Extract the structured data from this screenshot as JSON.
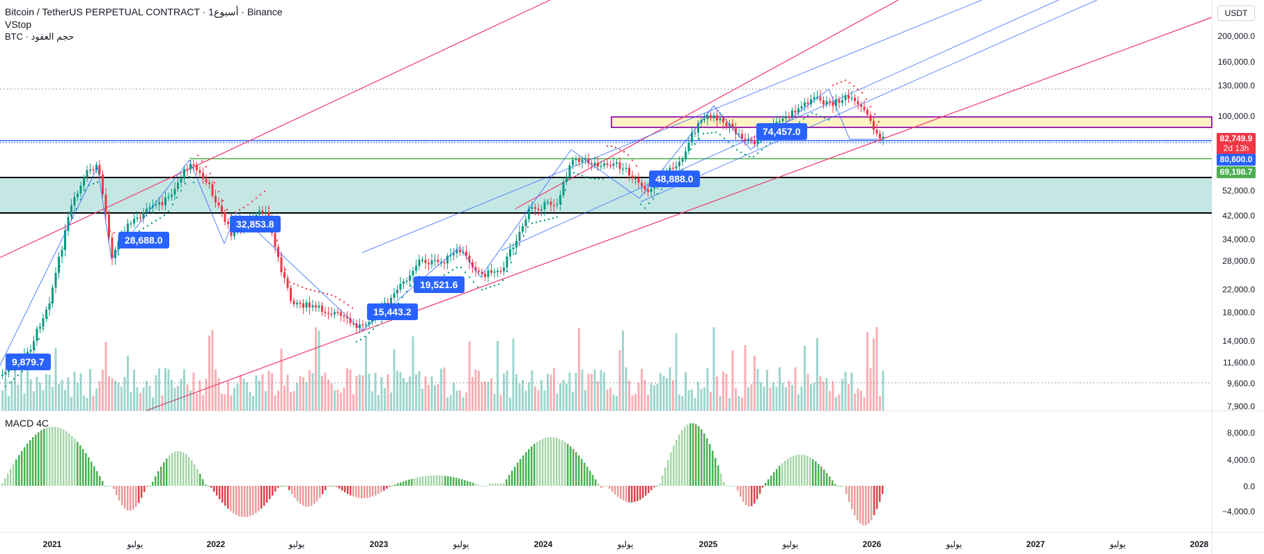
{
  "header": {
    "title": "Bitcoin / TetherUS PERPETUAL CONTRACT · 1أسبوع · Binance",
    "indicator": "VStop",
    "sub": "BTC · حجم العقود"
  },
  "currency_button": "USDT",
  "macd_label": "MACD 4C",
  "price_axis": [
    "200,000.0",
    "160,000.0",
    "130,000.0",
    "100,000.0",
    "52,000.0",
    "42,000.0",
    "34,000.0",
    "28,000.0",
    "22,000.0",
    "18,000.0",
    "14,000.0",
    "11,600.0",
    "9,600.0",
    "7,900.0"
  ],
  "macd_axis": [
    "8,000.0",
    "4,000.0",
    "0.0",
    "−4,000.0"
  ],
  "price_tags": {
    "last_price": "82,749.9",
    "countdown": "2d 13h",
    "blue_level": "80,600.0",
    "green_level": "69,198.7"
  },
  "time_axis": [
    {
      "label": "2021",
      "year": true
    },
    {
      "label": "يوليو",
      "year": false
    },
    {
      "label": "2022",
      "year": true
    },
    {
      "label": "يوليو",
      "year": false
    },
    {
      "label": "2023",
      "year": true
    },
    {
      "label": "يوليو",
      "year": false
    },
    {
      "label": "2024",
      "year": true
    },
    {
      "label": "يوليو",
      "year": false
    },
    {
      "label": "2025",
      "year": true
    },
    {
      "label": "يوليو",
      "year": false
    },
    {
      "label": "2026",
      "year": true
    },
    {
      "label": "يوليو",
      "year": false
    },
    {
      "label": "2027",
      "year": true
    },
    {
      "label": "يوليو",
      "year": false
    },
    {
      "label": "2028",
      "year": true
    }
  ],
  "callouts": [
    "9,879.7",
    "28,688.0",
    "32,853.8",
    "15,443.2",
    "19,521.6",
    "48,888.0",
    "74,457.0"
  ],
  "colors": {
    "up": "#089981",
    "down": "#f23645",
    "blue": "#2962ff",
    "channel_red": "#f0366a",
    "zone": "#b2dfdb",
    "macd_up_strong": "#4caf50",
    "macd_up_weak": "#a5d6a7",
    "macd_down_strong": "#e0404a",
    "macd_down_weak": "#ef9a9a"
  }
}
